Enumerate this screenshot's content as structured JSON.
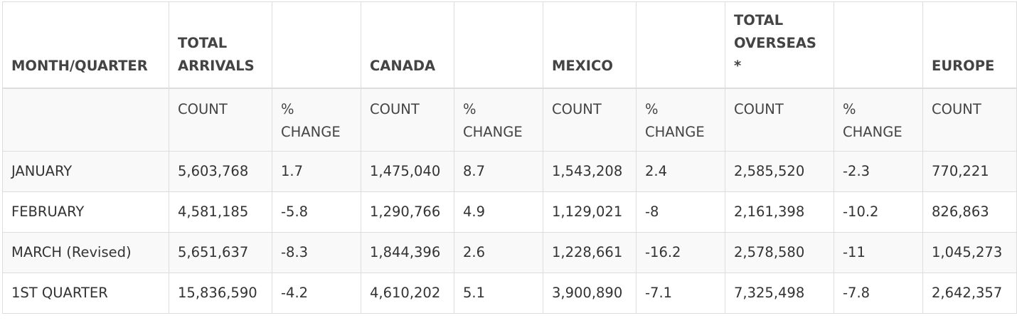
{
  "table": {
    "headers": [
      "MONTH/QUARTER",
      "TOTAL\nARRIVALS",
      "",
      "CANADA",
      "",
      "MEXICO",
      "",
      "TOTAL\nOVERSEAS\n*",
      "",
      "EUROPE"
    ],
    "subheaders": [
      "",
      "COUNT",
      "%\nCHANGE",
      "COUNT",
      "%\nCHANGE",
      "COUNT",
      "%\nCHANGE",
      "COUNT",
      "%\nCHANGE",
      "COUNT"
    ],
    "rows": [
      [
        "JANUARY",
        "5,603,768",
        "1.7",
        "1,475,040",
        "8.7",
        "1,543,208",
        "2.4",
        "2,585,520",
        "-2.3",
        "770,221"
      ],
      [
        "FEBRUARY",
        "4,581,185",
        "-5.8",
        "1,290,766",
        "4.9",
        "1,129,021",
        "-8",
        "2,161,398",
        "-10.2",
        "826,863"
      ],
      [
        "MARCH (Revised)",
        "5,651,637",
        "-8.3",
        "1,844,396",
        "2.6",
        "1,228,661",
        "-16.2",
        "2,578,580",
        "-11",
        "1,045,273"
      ],
      [
        "1ST QUARTER",
        "15,836,590",
        "-4.2",
        "4,610,202",
        "5.1",
        "3,900,890",
        "-7.1",
        "7,325,498",
        "-7.8",
        "2,642,357"
      ]
    ]
  }
}
